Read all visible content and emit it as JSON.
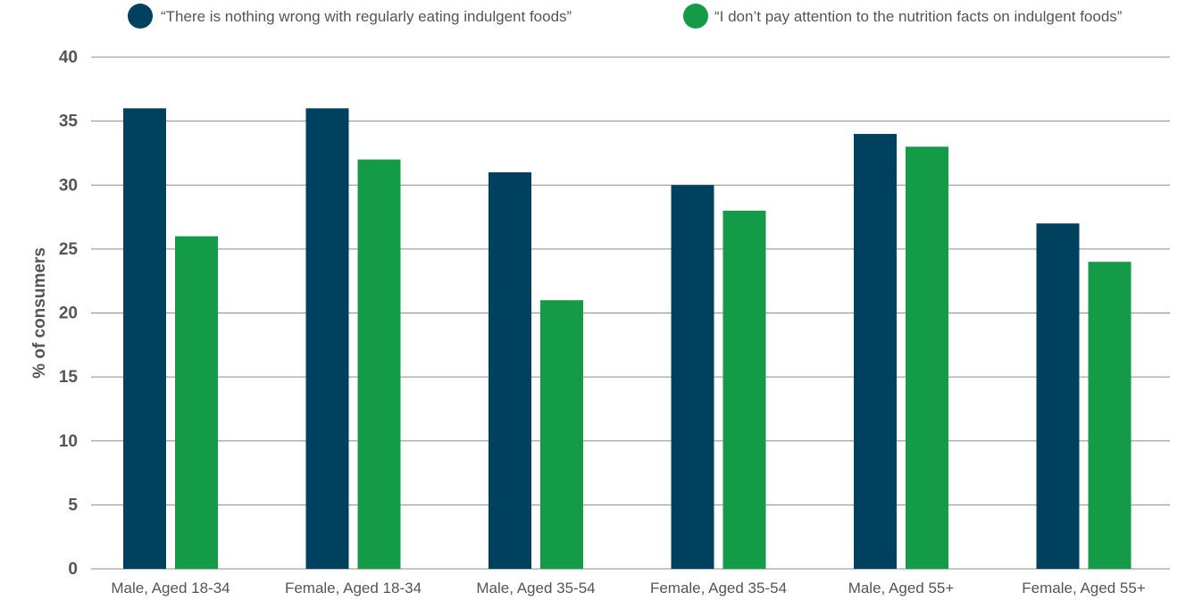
{
  "chart_data": {
    "type": "bar",
    "title": "",
    "xlabel": "",
    "ylabel": "% of consumers",
    "ylim": [
      0,
      40
    ],
    "yticks": [
      0,
      5,
      10,
      15,
      20,
      25,
      30,
      35,
      40
    ],
    "grid": true,
    "legend_position": "top",
    "categories": [
      "Male, Aged 18-34",
      "Female, Aged 18-34",
      "Male, Aged 35-54",
      "Female, Aged 35-54",
      "Male, Aged 55+",
      "Female, Aged 55+"
    ],
    "series": [
      {
        "name": "“There is nothing wrong with regularly eating indulgent foods”",
        "color": "#00415f",
        "values": [
          36,
          36,
          31,
          30,
          34,
          27
        ]
      },
      {
        "name": "“I don’t pay attention to the nutrition facts on indulgent foods”",
        "color": "#139b48",
        "values": [
          26,
          32,
          21,
          28,
          33,
          24
        ]
      }
    ]
  }
}
